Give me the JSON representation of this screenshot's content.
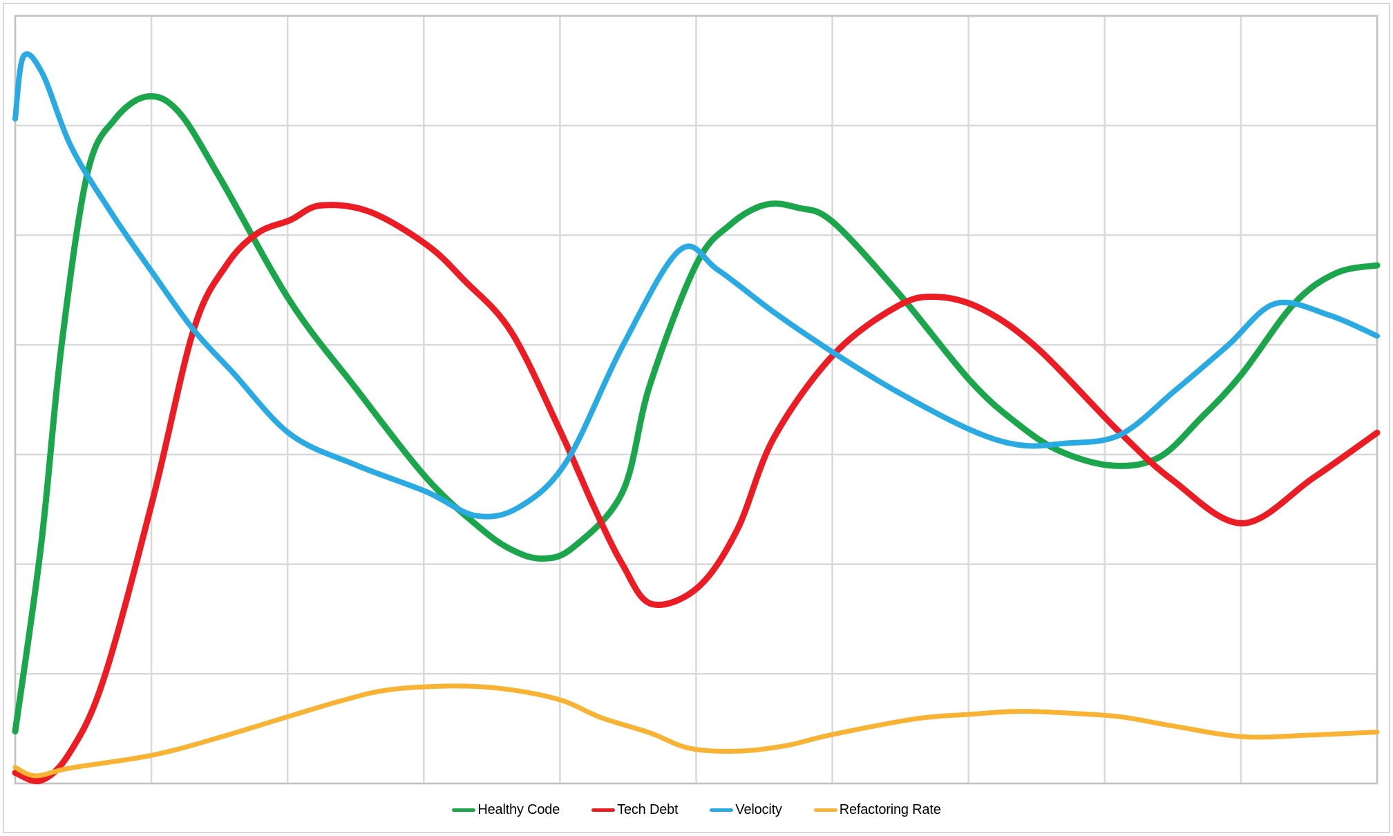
{
  "chart_data": {
    "type": "line",
    "title": "",
    "x_axis": {
      "label": "",
      "min": 0,
      "max": 100,
      "gridline_count": 11,
      "tick_labels_visible": false
    },
    "y_axis": {
      "label": "",
      "min": 0,
      "max": 100,
      "gridline_count": 8,
      "tick_labels_visible": false
    },
    "grid": true,
    "legend_position": "bottom-center",
    "units_note": "axes are unlabeled; values are percent of plot height/width",
    "series": [
      {
        "name": "Healthy Code",
        "color": "#1BA64C",
        "line_width": 9,
        "x": [
          0,
          1.9,
          3.4,
          5.3,
          7.3,
          9.7,
          12,
          15,
          20.2,
          25,
          30.2,
          34,
          36.4,
          38.7,
          41,
          44.6,
          46.6,
          50,
          52.5,
          55.1,
          57.5,
          60,
          64.8,
          70.1,
          73.5,
          76.7,
          80.6,
          84,
          87,
          90,
          93.9,
          97,
          100
        ],
        "y": [
          6.8,
          31,
          57,
          79.5,
          86.5,
          89.5,
          87.5,
          79,
          62.8,
          51.5,
          39.8,
          33.5,
          30.5,
          29.3,
          30.8,
          38,
          51.9,
          67.6,
          72.8,
          75.4,
          75,
          73.2,
          64,
          52.5,
          47,
          43.3,
          41.4,
          42.5,
          47.5,
          53.2,
          62.5,
          66.5,
          67.5
        ]
      },
      {
        "name": "Tech Debt",
        "color": "#EC1C24",
        "line_width": 9,
        "x": [
          0,
          1.9,
          4,
          6.5,
          10.1,
          13.1,
          15.5,
          17.8,
          20.2,
          22.4,
          26,
          30.2,
          33,
          36.4,
          40,
          42.5,
          44.6,
          46.7,
          50.1,
          53,
          55.7,
          60.1,
          64.8,
          67.7,
          71,
          75,
          80.9,
          85,
          90.1,
          95.3,
          100
        ],
        "y": [
          1.4,
          0.4,
          4,
          13.6,
          37,
          59.1,
          67.5,
          71.7,
          73.4,
          75.3,
          74.5,
          70.2,
          65.5,
          58.9,
          46,
          36,
          28.5,
          23.4,
          25.5,
          33,
          45,
          55.9,
          62.2,
          63.4,
          61.8,
          56.8,
          46.1,
          39.5,
          33.9,
          39.8,
          45.7
        ]
      },
      {
        "name": "Velocity",
        "color": "#2AAAE2",
        "line_width": 8,
        "x": [
          0,
          0.6,
          2,
          4.1,
          7,
          10.1,
          13.1,
          16,
          20.2,
          25,
          30.2,
          33.8,
          37,
          40.5,
          44.6,
          48.8,
          51.6,
          55.7,
          60.1,
          64.8,
          70.1,
          73.7,
          77,
          81.1,
          85.1,
          89,
          92.5,
          96.5,
          100
        ],
        "y": [
          86.6,
          94.7,
          92.5,
          83,
          74.5,
          66.5,
          59.1,
          53.5,
          45.5,
          41.5,
          38,
          34.9,
          36,
          42,
          57,
          69.5,
          66.9,
          61.4,
          56.1,
          51,
          46.1,
          44.1,
          44.3,
          45.4,
          51.1,
          57,
          62.5,
          61,
          58.3
        ]
      },
      {
        "name": "Refactoring Rate",
        "color": "#F8B334",
        "line_width": 7,
        "x": [
          0,
          1.5,
          4,
          10.1,
          15,
          20.2,
          24,
          27.4,
          32.2,
          36,
          40,
          43,
          46.6,
          49.5,
          53,
          56.5,
          59.8,
          66,
          70,
          73.6,
          77,
          81.1,
          85,
          90.1,
          95,
          100
        ],
        "y": [
          2.1,
          1.0,
          2.0,
          3.7,
          6.0,
          8.8,
          10.8,
          12.2,
          12.7,
          12.3,
          10.9,
          8.6,
          6.6,
          4.6,
          4.2,
          4.9,
          6.3,
          8.4,
          9.0,
          9.4,
          9.2,
          8.7,
          7.5,
          6.1,
          6.3,
          6.7
        ]
      }
    ]
  },
  "style": {
    "background_color": "#FFFFFF",
    "gridline_color": "#D9D9D9",
    "plot_border_color": "#C2C2C2",
    "outer_border_color": "#D8D8D8",
    "legend_text_color": "#000000"
  }
}
